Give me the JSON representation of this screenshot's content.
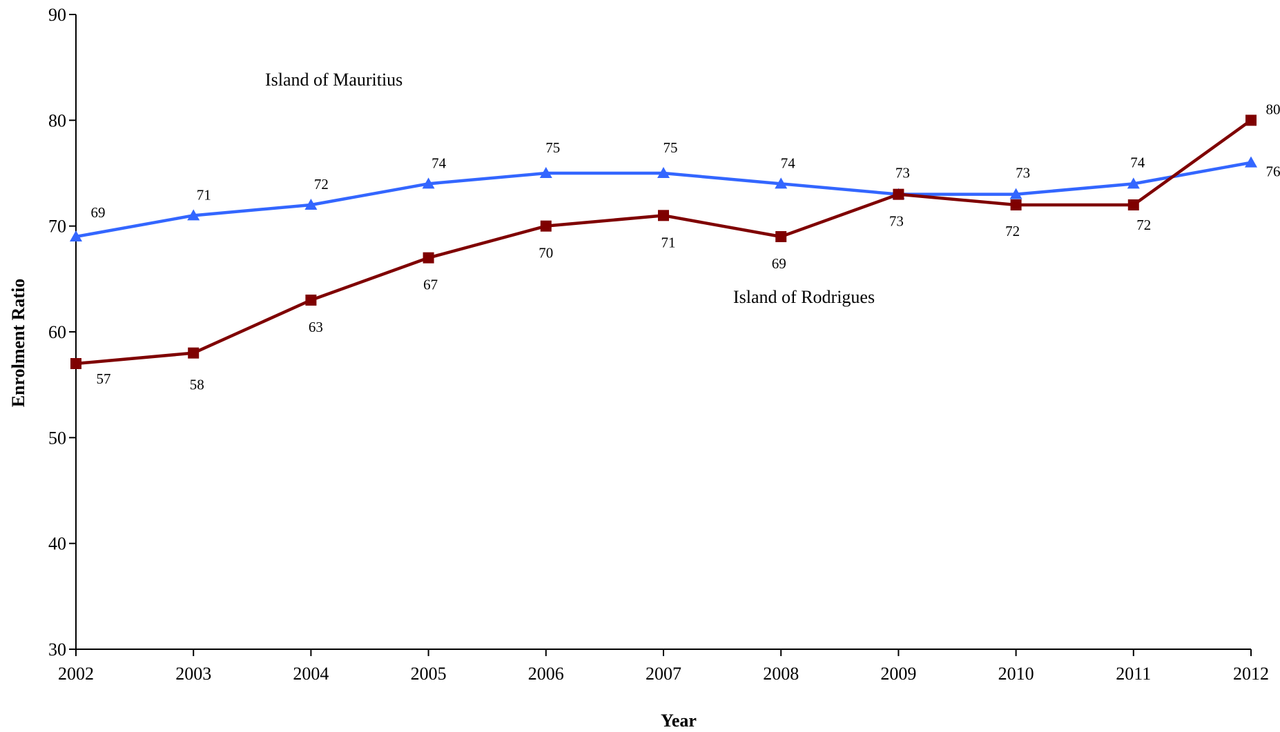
{
  "chart_data": {
    "type": "line",
    "title": "",
    "xlabel": "Year",
    "ylabel": "Enrolment Ratio",
    "x": [
      "2002",
      "2003",
      "2004",
      "2005",
      "2006",
      "2007",
      "2008",
      "2009",
      "2010",
      "2011",
      "2012"
    ],
    "ylim": [
      30,
      90
    ],
    "yticks": [
      "30",
      "40",
      "50",
      "60",
      "70",
      "80",
      "90"
    ],
    "grid": false,
    "legend": "none",
    "series": [
      {
        "name": "Island of Mauritius",
        "color": "#3366ff",
        "marker": "triangle",
        "values": [
          69,
          71,
          72,
          74,
          75,
          75,
          74,
          73,
          73,
          74,
          76
        ]
      },
      {
        "name": "Island of Rodrigues",
        "color": "#7f0000",
        "marker": "square",
        "values": [
          57,
          58,
          63,
          67,
          70,
          71,
          69,
          73,
          72,
          72,
          80
        ]
      }
    ]
  }
}
